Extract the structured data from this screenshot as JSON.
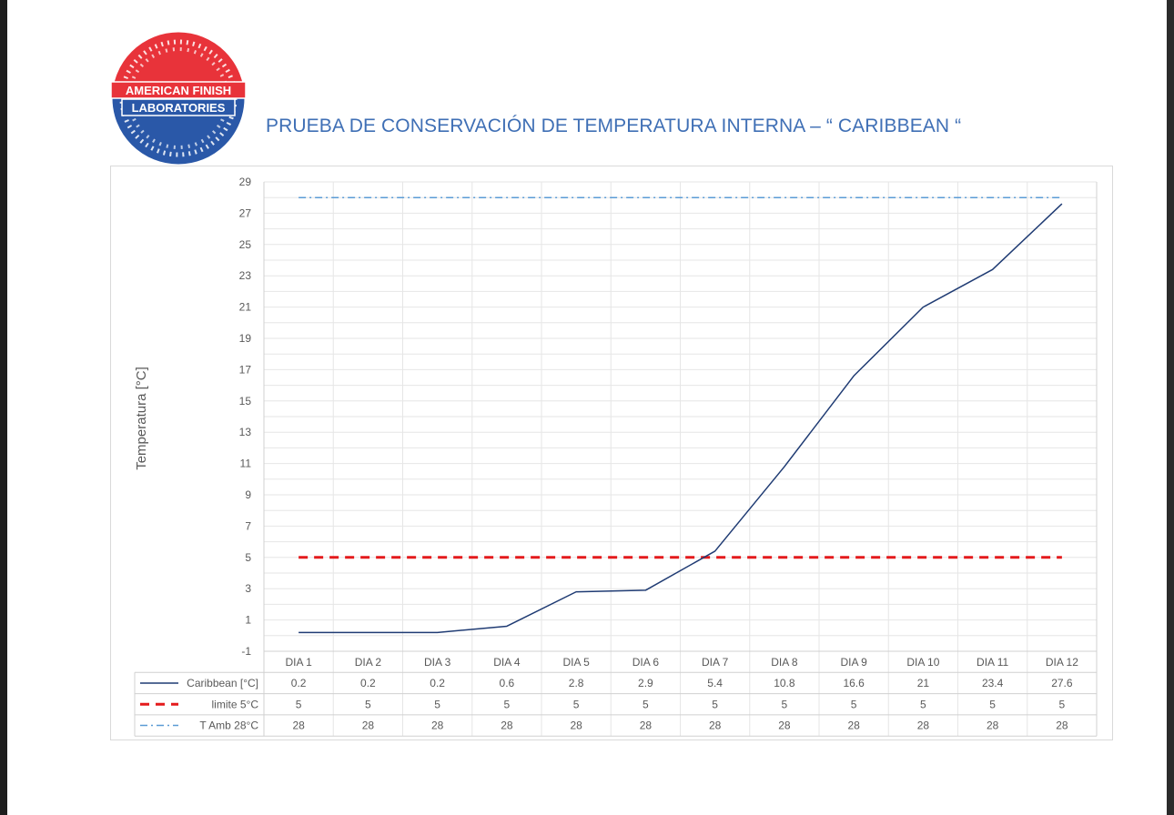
{
  "page_title": "PRUEBA DE CONSERVACIÓN DE TEMPERATURA INTERNA – “ CARIBBEAN “",
  "logo": {
    "line1": "AMERICAN FINISH",
    "line2": "LABORATORIES"
  },
  "colors": {
    "title": "#3f6fb5",
    "caribbean": "#1f3b73",
    "limite": "#e41a1c",
    "tamb": "#5b9bd5",
    "grid": "#e6e6e6"
  },
  "chart_data": {
    "type": "line",
    "title": "",
    "xlabel": "",
    "ylabel": "Temperatura [°C]",
    "ylim": [
      -1,
      29
    ],
    "yticks": [
      -1,
      1,
      3,
      5,
      7,
      9,
      11,
      13,
      15,
      17,
      19,
      21,
      23,
      25,
      27,
      29
    ],
    "grid": true,
    "legend": "data-table-left",
    "categories": [
      "DIA 1",
      "DIA 2",
      "DIA 3",
      "DIA 4",
      "DIA 5",
      "DIA 6",
      "DIA 7",
      "DIA 8",
      "DIA 9",
      "DIA 10",
      "DIA 11",
      "DIA 12"
    ],
    "series": [
      {
        "name": "Caribbean [°C]",
        "style": "solid",
        "values": [
          0.2,
          0.2,
          0.2,
          0.6,
          2.8,
          2.9,
          5.4,
          10.8,
          16.6,
          21,
          23.4,
          27.6
        ]
      },
      {
        "name": "limite 5°C",
        "style": "dashed",
        "values": [
          5,
          5,
          5,
          5,
          5,
          5,
          5,
          5,
          5,
          5,
          5,
          5
        ]
      },
      {
        "name": "T Amb 28°C",
        "style": "dash-dot",
        "values": [
          28,
          28,
          28,
          28,
          28,
          28,
          28,
          28,
          28,
          28,
          28,
          28
        ]
      }
    ]
  }
}
